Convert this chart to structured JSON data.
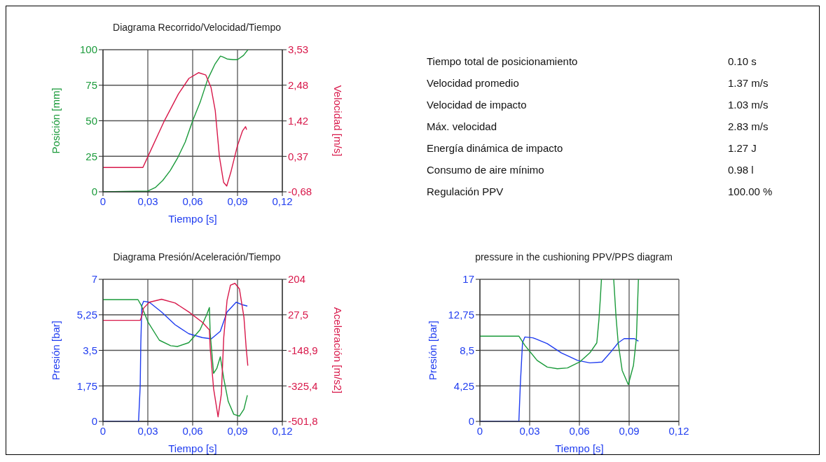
{
  "chart_data": [
    {
      "type": "line",
      "title": "Diagrama Recorrido/Velocidad/Tiempo",
      "xlabel": "Tiempo [s]",
      "ylabel": "Posición [mm]",
      "y2label": "Velocidad [m/s]",
      "grid": true,
      "xlim": [
        0,
        0.12
      ],
      "xticks": [
        {
          "value": 0,
          "label": "0"
        },
        {
          "value": 0.03,
          "label": "0,03"
        },
        {
          "value": 0.06,
          "label": "0,06"
        },
        {
          "value": 0.09,
          "label": "0,09"
        },
        {
          "value": 0.12,
          "label": "0,12"
        }
      ],
      "ylim": [
        0,
        100
      ],
      "yticks": [
        0,
        25,
        50,
        75,
        100
      ],
      "y2lim": [
        -0.68,
        3.53
      ],
      "y2ticks": [
        {
          "value": -0.68,
          "label": "-0,68"
        },
        {
          "value": 0.37,
          "label": "0,37"
        },
        {
          "value": 1.42,
          "label": "1,42"
        },
        {
          "value": 2.48,
          "label": "2,48"
        },
        {
          "value": 3.53,
          "label": "3,53"
        }
      ],
      "series": [
        {
          "color": "#1a9a3a",
          "x": [
            0,
            0.03,
            0.035,
            0.04,
            0.045,
            0.05,
            0.055,
            0.06,
            0.065,
            0.07,
            0.075,
            0.0786,
            0.08,
            0.083,
            0.087,
            0.09,
            0.094,
            0.097
          ],
          "values": [
            0,
            0.5,
            3,
            8,
            15,
            24,
            35,
            50,
            63,
            79,
            90,
            95.5,
            95,
            93.5,
            93,
            93,
            96,
            100
          ]
        },
        {
          "color": "#d8184a",
          "axis": "y2",
          "x": [
            0,
            0.0267,
            0.03,
            0.0407,
            0.0505,
            0.0575,
            0.0639,
            0.0688,
            0.0723,
            0.0751,
            0.0779,
            0.0807,
            0.0828,
            0.0856,
            0.0898,
            0.0933,
            0.0954,
            0.0961
          ],
          "values": [
            0.04,
            0.04,
            0.36,
            1.39,
            2.22,
            2.68,
            2.85,
            2.78,
            2.41,
            1.73,
            0.36,
            -0.4,
            -0.51,
            -0.09,
            0.66,
            1.12,
            1.25,
            1.16
          ]
        }
      ]
    },
    {
      "type": "other",
      "annotations": [
        "Tiempo total de posicionamiento",
        "0.10  s",
        "Velocidad promedio",
        "1.37 m/s",
        "Velocidad de impacto",
        "1.03 m/s",
        "Máx. velocidad",
        "2.83 m/s",
        "Energía dinámica de impacto",
        "1.27 J",
        "Consumo de aire mínimo",
        "0.98 l",
        "Regulación PPV",
        "100.00 %"
      ]
    },
    {
      "type": "line",
      "title": "Diagrama Presión/Aceleración/Tiempo",
      "xlabel": "Tiempo [s]",
      "ylabel": "Presión [bar]",
      "y2label": "Aceleración [m/s2]",
      "grid": true,
      "xlim": [
        0,
        0.12
      ],
      "xticks": [
        {
          "value": 0,
          "label": "0"
        },
        {
          "value": 0.03,
          "label": "0,03"
        },
        {
          "value": 0.06,
          "label": "0,06"
        },
        {
          "value": 0.09,
          "label": "0,09"
        },
        {
          "value": 0.12,
          "label": "0,12"
        }
      ],
      "ylim": [
        0,
        7
      ],
      "yticks": [
        0,
        {
          "value": 1.75,
          "label": "1,75"
        },
        {
          "value": 3.5,
          "label": "3,5"
        },
        {
          "value": 5.25,
          "label": "5,25"
        },
        7
      ],
      "y2lim": [
        -501.8,
        204
      ],
      "y2ticks": [
        {
          "value": -501.8,
          "label": "-501,8"
        },
        {
          "value": -325.4,
          "label": "-325,4"
        },
        {
          "value": -148.9,
          "label": "-148,9"
        },
        {
          "value": 27.5,
          "label": "27,5"
        },
        204
      ],
      "series": [
        {
          "color": "#1f3cf0",
          "x": [
            0,
            0.0238,
            0.0249,
            0.0253,
            0.026,
            0.0272,
            0.031,
            0.0392,
            0.0483,
            0.0574,
            0.0664,
            0.0725,
            0.0785,
            0.083,
            0.0891,
            0.0936,
            0.0966
          ],
          "values": [
            0,
            0,
            1.74,
            3.82,
            5.7,
            5.92,
            5.87,
            5.39,
            4.76,
            4.32,
            4.13,
            4.07,
            4.44,
            5.39,
            5.87,
            5.74,
            5.68
          ]
        },
        {
          "color": "#1a9a3a",
          "x": [
            0,
            0.0234,
            0.0257,
            0.0302,
            0.0377,
            0.0453,
            0.0498,
            0.0574,
            0.0649,
            0.0694,
            0.0712,
            0.0717,
            0.074,
            0.0762,
            0.0785,
            0.0808,
            0.0838,
            0.0875,
            0.0913,
            0.0943,
            0.0966
          ],
          "values": [
            6,
            6,
            5.7,
            4.88,
            4,
            3.73,
            3.69,
            3.88,
            4.51,
            5.26,
            5.61,
            4.38,
            2.37,
            2.62,
            3.18,
            2.12,
            0.98,
            0.35,
            0.26,
            0.6,
            1.29
          ]
        },
        {
          "color": "#d8184a",
          "axis": "y2",
          "x": [
            0,
            0.0249,
            0.0257,
            0.0272,
            0.031,
            0.0392,
            0.0483,
            0.0574,
            0.0664,
            0.0712,
            0.0717,
            0.074,
            0.077,
            0.0792,
            0.0808,
            0.083,
            0.0853,
            0.0883,
            0.0913,
            0.0943,
            0.0958,
            0.0969
          ],
          "values": [
            0,
            0,
            16,
            61,
            90,
            105,
            86,
            42,
            -9,
            -47,
            -136,
            -339,
            -479,
            -365,
            -85,
            99,
            175,
            184,
            156,
            16,
            -136,
            -225
          ]
        }
      ]
    },
    {
      "type": "line",
      "title": "pressure in the cushioning PPV/PPS diagram",
      "xlabel": "Tiempo [s]",
      "ylabel": "Presión [bar]",
      "grid": true,
      "xlim": [
        0,
        0.12
      ],
      "xticks": [
        {
          "value": 0,
          "label": "0"
        },
        {
          "value": 0.03,
          "label": "0,03"
        },
        {
          "value": 0.06,
          "label": "0,06"
        },
        {
          "value": 0.09,
          "label": "0,09"
        },
        {
          "value": 0.12,
          "label": "0,12"
        }
      ],
      "ylim": [
        0,
        17
      ],
      "yticks": [
        0,
        {
          "value": 4.25,
          "label": "4,25"
        },
        {
          "value": 8.5,
          "label": "8,5"
        },
        {
          "value": 12.75,
          "label": "12,75"
        },
        17
      ],
      "series": [
        {
          "color": "#1f3cf0",
          "x": [
            0,
            0.0235,
            0.0244,
            0.0257,
            0.0271,
            0.032,
            0.0406,
            0.0491,
            0.0589,
            0.0663,
            0.0736,
            0.0785,
            0.0834,
            0.087,
            0.0932,
            0.0956
          ],
          "values": [
            0,
            0,
            4.5,
            9.4,
            10.1,
            10,
            9.3,
            8.2,
            7.3,
            7,
            7.1,
            8.2,
            9.4,
            9.9,
            9.9,
            9.6
          ]
        },
        {
          "color": "#1a9a3a",
          "x": [
            0,
            0.0235,
            0.0271,
            0.0345,
            0.0406,
            0.0467,
            0.0528,
            0.0601,
            0.0663,
            0.0705,
            0.0718,
            0.0726,
            0.0733,
            0.077,
            0.0807,
            0.0821,
            0.0834,
            0.0858,
            0.0895,
            0.0926,
            0.0944,
            0.0956
          ],
          "values": [
            10.2,
            10.2,
            9.1,
            7.3,
            6.5,
            6.3,
            6.4,
            7.1,
            8.2,
            9.4,
            12.2,
            14.6,
            17,
            null,
            17,
            12.5,
            9.4,
            6.1,
            4.4,
            6.7,
            10,
            17
          ]
        }
      ]
    }
  ]
}
